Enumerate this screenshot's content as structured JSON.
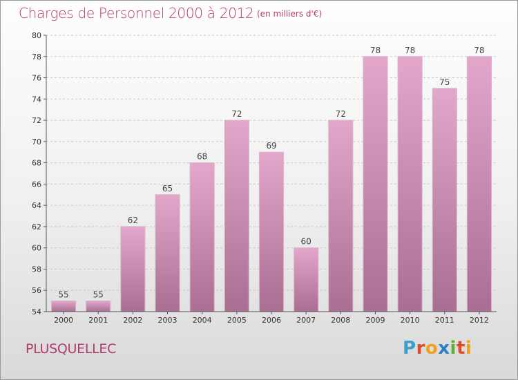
{
  "header": {
    "title": "Charges de Personnel 2000 à 2012",
    "subtitle": "(en milliers d'€)"
  },
  "footer": {
    "commune": "PLUSQUELLEC",
    "logo_text": "Proxiti"
  },
  "colors": {
    "accent": "#b03c6c",
    "bar_top": "#e3a7cb",
    "bar_bottom": "#a96e92",
    "logo_letters": [
      "#3aa0d0",
      "#e04a2e",
      "#f0a020",
      "#2f7fc0",
      "#5cb030",
      "#e04a2e",
      "#f0a020"
    ]
  },
  "chart_data": {
    "type": "bar",
    "categories": [
      "2000",
      "2001",
      "2002",
      "2003",
      "2004",
      "2005",
      "2006",
      "2007",
      "2008",
      "2009",
      "2010",
      "2011",
      "2012"
    ],
    "values": [
      55,
      55,
      62,
      65,
      68,
      72,
      69,
      60,
      72,
      78,
      78,
      75,
      78
    ],
    "title": "Charges de Personnel 2000 à 2012",
    "subtitle": "(en milliers d'€)",
    "xlabel": "",
    "ylabel": "",
    "ylim": [
      54,
      80
    ],
    "yticks": [
      54,
      56,
      58,
      60,
      62,
      64,
      66,
      68,
      70,
      72,
      74,
      76,
      78,
      80
    ],
    "grid": true,
    "data_labels": true
  }
}
